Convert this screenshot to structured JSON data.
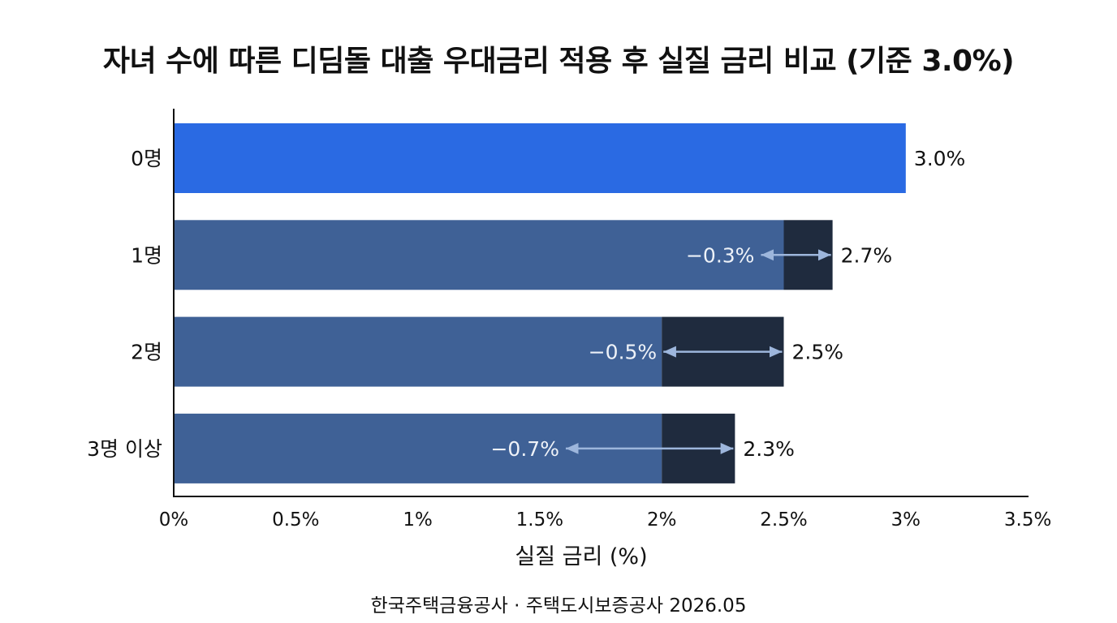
{
  "chart_data": {
    "type": "bar",
    "orientation": "horizontal",
    "title": "자녀 수에 따른 디딤돌 대출 우대금리 적용 후 실질 금리 비교 (기준 3.0%)",
    "xlabel": "실질 금리 (%)",
    "ylabel": "",
    "xlim": [
      0,
      3.5
    ],
    "xticks": [
      0,
      0.5,
      1,
      1.5,
      2,
      2.5,
      3,
      3.5
    ],
    "xtick_labels": [
      "0%",
      "0.5%",
      "1%",
      "1.5%",
      "2%",
      "2.5%",
      "3%",
      "3.5%"
    ],
    "categories": [
      "0명",
      "1명",
      "2명",
      "3명 이상"
    ],
    "values": [
      3.0,
      2.7,
      2.5,
      2.3
    ],
    "value_labels": [
      "3.0%",
      "2.7%",
      "2.5%",
      "2.3%"
    ],
    "discounts": [
      0,
      0.3,
      0.5,
      0.7
    ],
    "discount_labels": [
      "",
      "−0.3%",
      "−0.5%",
      "−0.7%"
    ],
    "grid": false,
    "colors": {
      "base_bar": "#2a6ae3",
      "discounted_bar": "#3f6196",
      "discount_segment": "#1f2b3e",
      "arrow": "#9db6dc"
    }
  },
  "source_note": "한국주택금융공사 · 주택도시보증공사 2026.05"
}
